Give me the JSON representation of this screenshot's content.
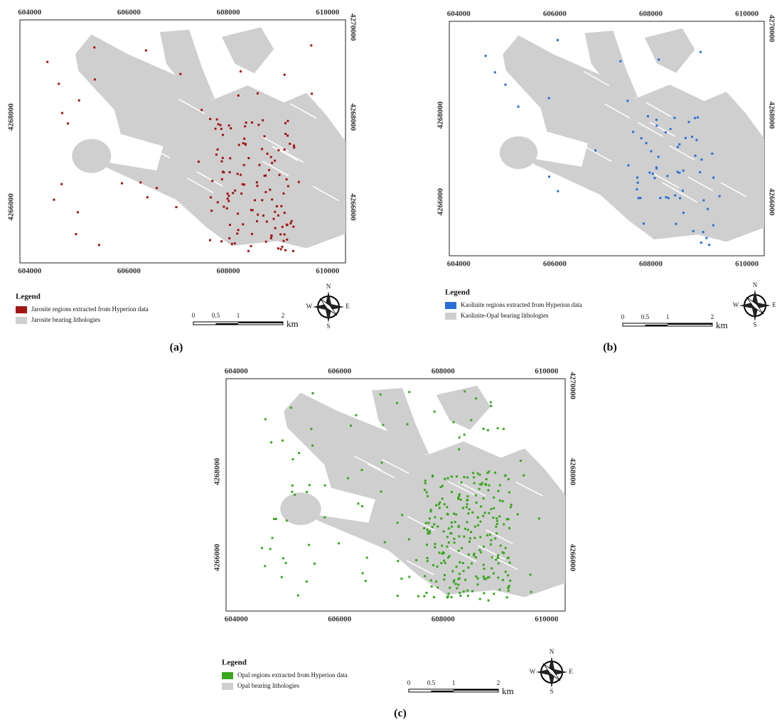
{
  "panels": [
    {
      "label": "(a)",
      "x_ticks": [
        "604000",
        "606000",
        "608000",
        "610000"
      ],
      "y_ticks": [
        "4270000",
        "4268000",
        "4266000"
      ],
      "legend_title": "Legend",
      "legend_items": [
        "Jarosite regions extracted from Hyperion data",
        "Jarosite bearing lithologies"
      ],
      "scale_labels": [
        "0",
        "0.5",
        "1",
        "2"
      ],
      "scale_unit": "km",
      "compass": [
        "N",
        "E",
        "S",
        "W"
      ]
    },
    {
      "label": "(b)",
      "x_ticks": [
        "604000",
        "606000",
        "608000",
        "610000"
      ],
      "y_ticks": [
        "4270000",
        "4268000",
        "4266000"
      ],
      "legend_title": "Legend",
      "legend_items": [
        "Kaolinite regions extracted from  Hyperion data",
        "Kaolinite-Opal bearing lithologies"
      ],
      "scale_labels": [
        "0",
        "0.5",
        "1",
        "2"
      ],
      "scale_unit": "km",
      "compass": [
        "N",
        "E",
        "S",
        "W"
      ]
    },
    {
      "label": "(c)",
      "x_ticks": [
        "604000",
        "606000",
        "608000",
        "610000"
      ],
      "y_ticks": [
        "4270000",
        "4268000",
        "4266000"
      ],
      "legend_title": "Legend",
      "legend_items": [
        "Opal regions extracted from Hyperion data",
        "Opal bearing lithologies"
      ],
      "scale_labels": [
        "0",
        "0.5",
        "1",
        "2"
      ],
      "scale_unit": "km",
      "compass": [
        "N",
        "E",
        "S",
        "W"
      ]
    }
  ]
}
